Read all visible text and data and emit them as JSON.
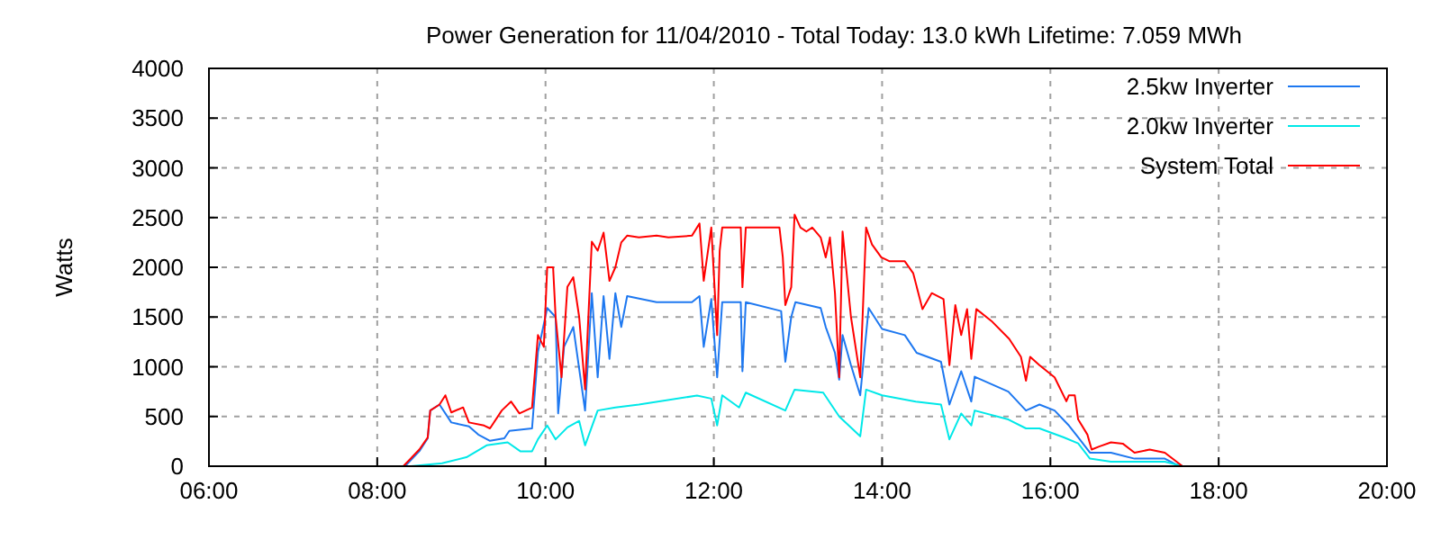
{
  "chart_data": {
    "type": "line",
    "title": "Power Generation for 11/04/2010 - Total Today: 13.0 kWh   Lifetime: 7.059 MWh",
    "ylabel": "Watts",
    "xlim": [
      6,
      20
    ],
    "xticks": [
      {
        "value": 6,
        "label": "06:00"
      },
      {
        "value": 8,
        "label": "08:00"
      },
      {
        "value": 10,
        "label": "10:00"
      },
      {
        "value": 12,
        "label": "12:00"
      },
      {
        "value": 14,
        "label": "14:00"
      },
      {
        "value": 16,
        "label": "16:00"
      },
      {
        "value": 18,
        "label": "18:00"
      },
      {
        "value": 20,
        "label": "20:00"
      }
    ],
    "ylim": [
      0,
      4000
    ],
    "yticks": [
      0,
      500,
      1000,
      1500,
      2000,
      2500,
      3000,
      3500,
      4000
    ],
    "grid": true,
    "legend": "top right",
    "marker": "none",
    "line_style": "solid",
    "series": [
      {
        "name": "2.5kw Inverter",
        "color": "#1e78f0",
        "x": [
          8.33,
          8.5,
          8.6,
          8.63,
          8.74,
          8.88,
          9.09,
          9.2,
          9.34,
          9.51,
          9.57,
          9.84,
          9.91,
          10.02,
          10.12,
          10.15,
          10.22,
          10.33,
          10.47,
          10.55,
          10.62,
          10.69,
          10.76,
          10.83,
          10.9,
          10.97,
          11.32,
          11.74,
          11.83,
          11.88,
          11.97,
          12.04,
          12.1,
          12.32,
          12.34,
          12.38,
          12.8,
          12.85,
          12.92,
          12.97,
          13.27,
          13.33,
          13.44,
          13.49,
          13.53,
          13.63,
          13.74,
          13.84,
          14.0,
          14.27,
          14.41,
          14.7,
          14.8,
          14.94,
          15.06,
          15.1,
          15.5,
          15.71,
          15.87,
          16.05,
          16.22,
          16.33,
          16.47,
          16.72,
          17.0,
          17.36,
          17.5,
          17.57
        ],
        "values": [
          0,
          150,
          280,
          560,
          620,
          440,
          400,
          318,
          255,
          280,
          355,
          380,
          1150,
          1590,
          1500,
          531,
          1200,
          1400,
          560,
          1740,
          894,
          1710,
          1080,
          1740,
          1400,
          1710,
          1650,
          1650,
          1710,
          1200,
          1680,
          894,
          1650,
          1650,
          955,
          1650,
          1560,
          1050,
          1500,
          1650,
          1590,
          1400,
          1140,
          870,
          1318,
          1016,
          713,
          1590,
          1380,
          1318,
          1140,
          1050,
          620,
          955,
          650,
          900,
          750,
          560,
          620,
          560,
          409,
          290,
          136,
          136,
          76,
          76,
          15,
          0
        ]
      },
      {
        "name": "2.0kw Inverter",
        "color": "#00e8e8",
        "x": [
          8.4,
          8.77,
          9.06,
          9.3,
          9.55,
          9.7,
          9.84,
          9.91,
          10.02,
          10.12,
          10.26,
          10.4,
          10.47,
          10.62,
          10.83,
          11.11,
          11.8,
          11.97,
          12.04,
          12.1,
          12.3,
          12.38,
          12.85,
          12.96,
          13.3,
          13.49,
          13.74,
          13.81,
          14.0,
          14.4,
          14.7,
          14.8,
          14.94,
          15.06,
          15.1,
          15.5,
          15.71,
          15.87,
          16.16,
          16.33,
          16.47,
          16.72,
          17.36,
          17.5,
          17.57
        ],
        "values": [
          0,
          30,
          90,
          210,
          240,
          150,
          150,
          270,
          410,
          270,
          390,
          455,
          210,
          560,
          590,
          620,
          710,
          680,
          410,
          713,
          590,
          740,
          560,
          770,
          740,
          500,
          300,
          770,
          713,
          650,
          620,
          270,
          530,
          410,
          560,
          470,
          380,
          380,
          290,
          230,
          76,
          45,
          45,
          15,
          0
        ]
      },
      {
        "name": "System Total",
        "color": "#ff0000",
        "x": [
          8.31,
          8.5,
          8.6,
          8.63,
          8.74,
          8.81,
          8.88,
          9.02,
          9.09,
          9.27,
          9.34,
          9.48,
          9.59,
          9.69,
          9.84,
          9.91,
          9.98,
          10.02,
          10.09,
          10.12,
          10.19,
          10.26,
          10.33,
          10.4,
          10.47,
          10.55,
          10.62,
          10.69,
          10.76,
          10.83,
          10.9,
          10.97,
          11.11,
          11.32,
          11.46,
          11.74,
          11.83,
          11.88,
          11.97,
          12.04,
          12.07,
          12.1,
          12.32,
          12.34,
          12.38,
          12.78,
          12.82,
          12.85,
          12.92,
          12.96,
          13.03,
          13.1,
          13.17,
          13.27,
          13.33,
          13.38,
          13.44,
          13.49,
          13.53,
          13.63,
          13.74,
          13.81,
          13.88,
          13.99,
          14.09,
          14.27,
          14.37,
          14.48,
          14.59,
          14.73,
          14.8,
          14.87,
          14.94,
          15.01,
          15.06,
          15.12,
          15.3,
          15.51,
          15.65,
          15.71,
          15.76,
          15.87,
          16.05,
          16.19,
          16.22,
          16.29,
          16.33,
          16.44,
          16.49,
          16.58,
          16.72,
          16.86,
          17.0,
          17.18,
          17.36,
          17.5,
          17.57
        ],
        "values": [
          0,
          167,
          289,
          560,
          620,
          713,
          541,
          591,
          440,
          409,
          380,
          560,
          650,
          531,
          590,
          1318,
          1200,
          2000,
          2000,
          1500,
          894,
          1804,
          1900,
          1500,
          773,
          2258,
          2167,
          2349,
          1864,
          2000,
          2250,
          2318,
          2300,
          2318,
          2300,
          2318,
          2440,
          1864,
          2400,
          1318,
          2167,
          2400,
          2400,
          1800,
          2400,
          2400,
          2100,
          1620,
          1800,
          2530,
          2400,
          2360,
          2400,
          2300,
          2100,
          2300,
          1740,
          894,
          2360,
          1500,
          894,
          2400,
          2230,
          2100,
          2060,
          2060,
          1940,
          1580,
          1740,
          1680,
          1016,
          1620,
          1318,
          1580,
          1080,
          1580,
          1460,
          1280,
          1100,
          860,
          1100,
          1016,
          894,
          653,
          713,
          713,
          470,
          318,
          167,
          198,
          240,
          227,
          136,
          167,
          136,
          45,
          0
        ]
      }
    ]
  }
}
